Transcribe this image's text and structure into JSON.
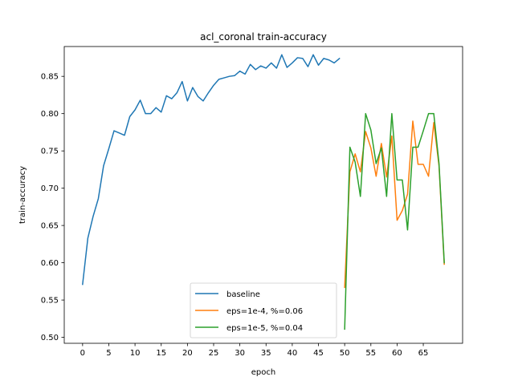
{
  "chart_data": {
    "type": "line",
    "title": "acl_coronal train-accuracy",
    "xlabel": "epoch",
    "ylabel": "train-accuracy",
    "xlim": [
      -3.5,
      72.5
    ],
    "ylim": [
      0.492,
      0.89
    ],
    "xticks": [
      0,
      5,
      10,
      15,
      20,
      25,
      30,
      35,
      40,
      45,
      50,
      55,
      60,
      65
    ],
    "yticks": [
      0.5,
      0.55,
      0.6,
      0.65,
      0.7,
      0.75,
      0.8,
      0.85
    ],
    "ytick_labels": [
      "0.50",
      "0.55",
      "0.60",
      "0.65",
      "0.70",
      "0.75",
      "0.80",
      "0.85"
    ],
    "grid": false,
    "legend_position": "lower-center",
    "series": [
      {
        "name": "baseline",
        "color": "#1f77b4",
        "x": [
          0,
          1,
          2,
          3,
          4,
          5,
          6,
          7,
          8,
          9,
          10,
          11,
          12,
          13,
          14,
          15,
          16,
          17,
          18,
          19,
          20,
          21,
          22,
          23,
          24,
          25,
          26,
          27,
          28,
          29,
          30,
          31,
          32,
          33,
          34,
          35,
          36,
          37,
          38,
          39,
          40,
          41,
          42,
          43,
          44,
          45,
          46,
          47,
          48,
          49
        ],
        "y": [
          0.571,
          0.633,
          0.662,
          0.686,
          0.73,
          0.753,
          0.777,
          0.774,
          0.771,
          0.796,
          0.805,
          0.818,
          0.8,
          0.8,
          0.808,
          0.802,
          0.824,
          0.82,
          0.828,
          0.843,
          0.817,
          0.835,
          0.823,
          0.817,
          0.828,
          0.838,
          0.846,
          0.848,
          0.85,
          0.851,
          0.857,
          0.853,
          0.866,
          0.859,
          0.864,
          0.861,
          0.868,
          0.861,
          0.879,
          0.862,
          0.868,
          0.875,
          0.874,
          0.863,
          0.879,
          0.865,
          0.874,
          0.872,
          0.868,
          0.874
        ]
      },
      {
        "name": "eps=1e-4, %=0.06",
        "color": "#ff7f0e",
        "x": [
          50,
          51,
          52,
          53,
          54,
          55,
          56,
          57,
          58,
          59,
          60,
          61,
          62,
          63,
          64,
          65,
          66,
          67,
          68,
          69
        ],
        "y": [
          0.567,
          0.722,
          0.746,
          0.722,
          0.776,
          0.754,
          0.716,
          0.76,
          0.715,
          0.77,
          0.657,
          0.67,
          0.692,
          0.79,
          0.732,
          0.732,
          0.716,
          0.788,
          0.73,
          0.598
        ]
      },
      {
        "name": "eps=1e-5, %=0.04",
        "color": "#2ca02c",
        "x": [
          50,
          51,
          52,
          53,
          54,
          55,
          56,
          57,
          58,
          59,
          60,
          61,
          62,
          63,
          64,
          65,
          66,
          67,
          68,
          69
        ],
        "y": [
          0.511,
          0.755,
          0.735,
          0.689,
          0.8,
          0.778,
          0.733,
          0.754,
          0.689,
          0.8,
          0.711,
          0.711,
          0.644,
          0.755,
          0.755,
          0.777,
          0.8,
          0.8,
          0.733,
          0.6
        ]
      }
    ]
  }
}
